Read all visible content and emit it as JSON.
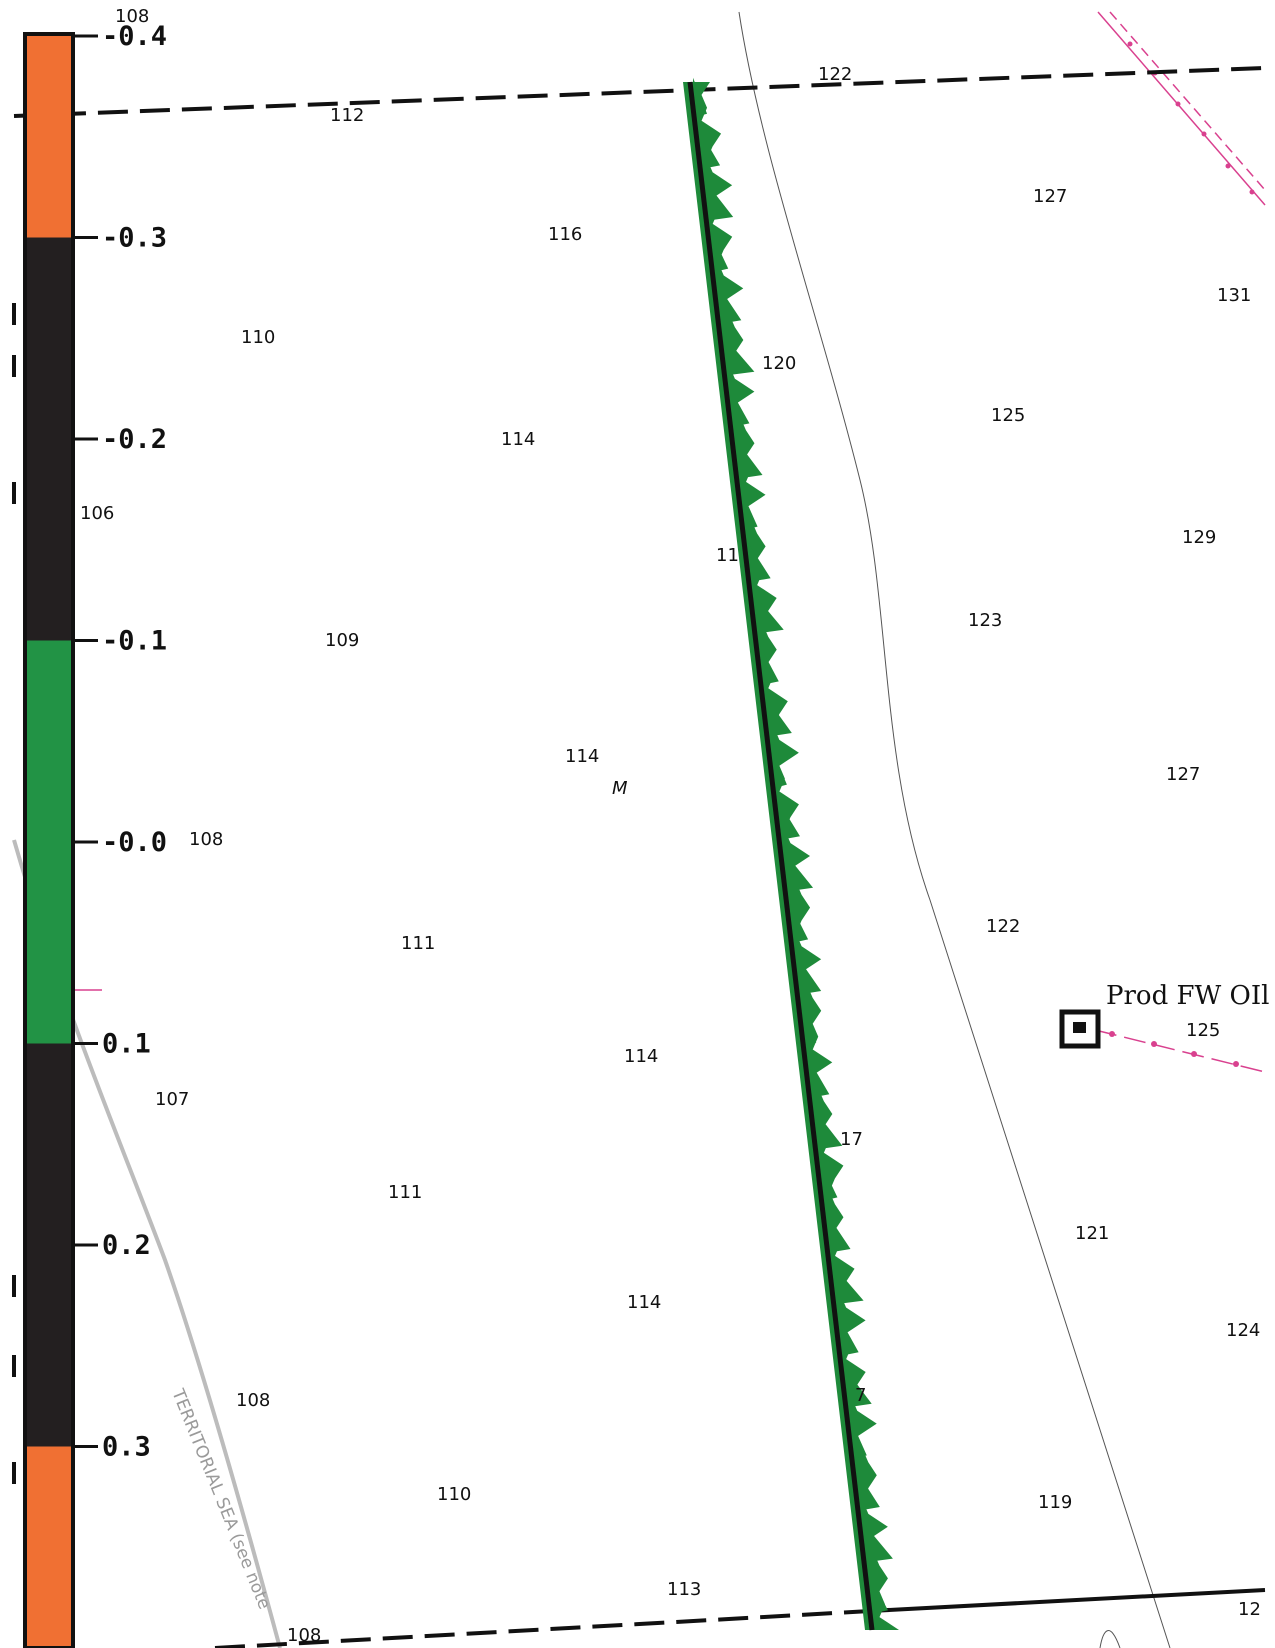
{
  "colors": {
    "orange": "#f07033",
    "black": "#231f20",
    "green": "#229345",
    "line_green": "#1e8a3a",
    "pink": "#d9418f",
    "grey": "#bcbcbc"
  },
  "scale_bar": {
    "labels": [
      "-0.4",
      "-0.3",
      "-0.2",
      "-0.1",
      "-0.0",
      "0.1",
      "0.2",
      "0.3"
    ],
    "bands": [
      {
        "from": -0.4,
        "to": -0.3,
        "color": "orange"
      },
      {
        "from": -0.3,
        "to": -0.1,
        "color": "black"
      },
      {
        "from": -0.1,
        "to": 0.1,
        "color": "green"
      },
      {
        "from": 0.1,
        "to": 0.3,
        "color": "black"
      },
      {
        "from": 0.3,
        "to": 0.4,
        "color": "orange"
      }
    ]
  },
  "soundings": [
    "108",
    "112",
    "122",
    "127",
    "116",
    "131",
    "110",
    "120",
    "114",
    "125",
    "106",
    "129",
    "11",
    "123",
    "109",
    "114",
    "M",
    "127",
    "108",
    "111",
    "122",
    "125",
    "107",
    "114",
    "17",
    "111",
    "121",
    "114",
    "124",
    "108",
    "7",
    "110",
    "119",
    "113",
    "12",
    "108"
  ],
  "facility_label": "Prod FW OIl",
  "zone_label": "TERRITORIAL SEA (see note"
}
